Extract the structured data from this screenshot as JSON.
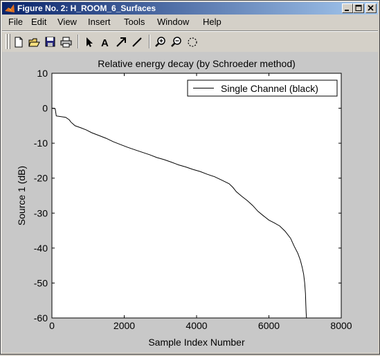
{
  "window": {
    "title": "Figure No. 2: H_ROOM_6_Surfaces",
    "controls": [
      "minimize",
      "maximize",
      "close"
    ]
  },
  "menu": {
    "items": [
      "File",
      "Edit",
      "View",
      "Insert",
      "Tools",
      "Window",
      "Help"
    ]
  },
  "toolbar": {
    "tools": [
      "new-document-icon",
      "open-folder-icon",
      "save-icon",
      "print-icon",
      "arrow-pointer-icon",
      "text-insert-icon",
      "arrow-draw-icon",
      "line-draw-icon",
      "zoom-in-icon",
      "zoom-out-icon",
      "rotate-icon"
    ]
  },
  "chart_data": {
    "type": "line",
    "title": "Relative energy decay (by Schroeder method)",
    "xlabel": "Sample Index Number",
    "ylabel": "Source 1 (dB)",
    "xlim": [
      0,
      8000
    ],
    "ylim": [
      -60,
      10
    ],
    "xticks": [
      "0",
      "2000",
      "4000",
      "6000",
      "8000"
    ],
    "yticks": [
      "10",
      "0",
      "-10",
      "-20",
      "-30",
      "-40",
      "-50",
      "-60"
    ],
    "xtick_values": [
      0,
      2000,
      4000,
      6000,
      8000
    ],
    "ytick_values": [
      10,
      0,
      -10,
      -20,
      -30,
      -40,
      -50,
      -60
    ],
    "grid": false,
    "legend_position": "top-right",
    "series": [
      {
        "name": "Single Channel (black)",
        "color": "#000000",
        "x": [
          0,
          90,
          120,
          380,
          480,
          520,
          560,
          640,
          720,
          800,
          950,
          1100,
          1300,
          1500,
          1700,
          1900,
          2100,
          2300,
          2500,
          2700,
          2900,
          3100,
          3300,
          3500,
          3700,
          3900,
          4100,
          4300,
          4500,
          4700,
          4900,
          5000,
          5100,
          5250,
          5400,
          5550,
          5700,
          5850,
          6000,
          6150,
          6300,
          6450,
          6600,
          6700,
          6800,
          6870,
          6920,
          6960,
          6990,
          7010,
          7020,
          7030,
          7040
        ],
        "y": [
          0,
          -0.1,
          -2.2,
          -2.6,
          -3.3,
          -3.9,
          -4.3,
          -5.0,
          -5.3,
          -5.6,
          -6.2,
          -7.0,
          -7.8,
          -8.6,
          -9.6,
          -10.4,
          -11.2,
          -11.9,
          -12.6,
          -13.3,
          -14.1,
          -14.7,
          -15.4,
          -16.2,
          -16.8,
          -17.5,
          -18.1,
          -18.9,
          -19.6,
          -20.6,
          -21.6,
          -22.6,
          -23.9,
          -25.2,
          -26.4,
          -27.8,
          -29.5,
          -30.8,
          -32.0,
          -32.8,
          -33.7,
          -35.2,
          -37.2,
          -39.5,
          -41.5,
          -43.5,
          -45.5,
          -47.5,
          -50.0,
          -53.0,
          -56.0,
          -58.5,
          -60.0
        ]
      }
    ]
  }
}
